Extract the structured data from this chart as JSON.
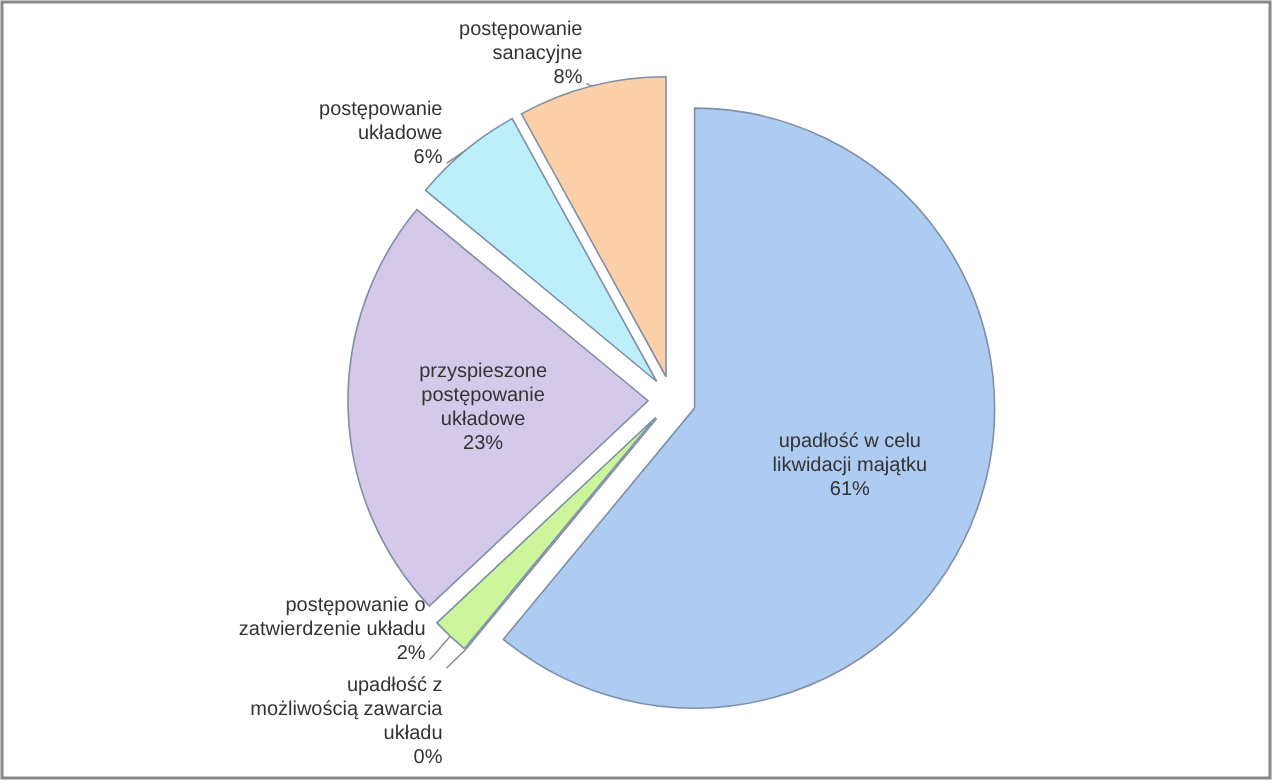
{
  "chart_data": {
    "type": "pie",
    "categories": [
      "upadłość w celu likwidacji majątku",
      "upadłość z możliwością zawarcia układu",
      "postępowanie o zatwierdzenie układu",
      "przyspieszone postępowanie układowe",
      "postępowanie układowe",
      "postępowanie sanacyjne"
    ],
    "values": [
      61,
      0,
      2,
      23,
      6,
      8
    ],
    "value_labels": [
      "61%",
      "0%",
      "2%",
      "23%",
      "6%",
      "8%"
    ],
    "colors": [
      "#aecbf2",
      "#c6e0b0",
      "#ccf59c",
      "#d5c9ea",
      "#bdeffa",
      "#fbcfa8"
    ]
  }
}
